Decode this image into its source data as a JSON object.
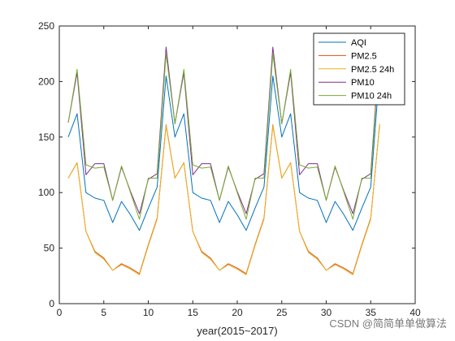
{
  "chart_data": {
    "type": "line",
    "title": "",
    "xlabel": "year(2015~2017)",
    "ylabel": "",
    "xlim": [
      0,
      40
    ],
    "ylim": [
      0,
      250
    ],
    "xticks": [
      0,
      5,
      10,
      15,
      20,
      25,
      30,
      35,
      40
    ],
    "yticks": [
      0,
      50,
      100,
      150,
      200,
      250
    ],
    "grid": false,
    "legend_position": "top-right",
    "x": [
      1,
      2,
      3,
      4,
      5,
      6,
      7,
      8,
      9,
      10,
      11,
      12,
      13,
      14,
      15,
      16,
      17,
      18,
      19,
      20,
      21,
      22,
      23,
      24,
      25,
      26,
      27,
      28,
      29,
      30,
      31,
      32,
      33,
      34,
      35,
      36
    ],
    "series": [
      {
        "name": "AQI",
        "color": "#0072BD",
        "values": [
          150,
          171,
          100,
          95,
          93,
          73,
          92,
          80,
          66,
          86,
          105,
          205,
          150,
          171,
          100,
          95,
          93,
          73,
          92,
          80,
          66,
          86,
          105,
          205,
          150,
          171,
          100,
          95,
          93,
          73,
          92,
          80,
          66,
          86,
          105,
          210
        ]
      },
      {
        "name": "PM2.5",
        "color": "#D95319",
        "values": [
          113,
          127,
          65,
          47,
          41,
          30,
          36,
          32,
          27,
          53,
          77,
          161,
          113,
          127,
          65,
          47,
          41,
          30,
          36,
          32,
          27,
          53,
          77,
          161,
          113,
          127,
          65,
          47,
          41,
          30,
          36,
          32,
          27,
          53,
          77,
          161
        ]
      },
      {
        "name": "PM2.5 24h",
        "color": "#EDB120",
        "values": [
          113,
          127,
          65,
          46,
          40,
          30,
          35,
          31,
          26,
          52,
          76,
          160,
          113,
          127,
          65,
          46,
          40,
          30,
          35,
          31,
          26,
          52,
          76,
          160,
          113,
          127,
          65,
          46,
          40,
          30,
          35,
          31,
          26,
          52,
          76,
          162
        ]
      },
      {
        "name": "PM10",
        "color": "#7E2F8E",
        "values": [
          163,
          208,
          116,
          126,
          126,
          93,
          123,
          101,
          81,
          112,
          117,
          231,
          162,
          208,
          116,
          126,
          126,
          93,
          123,
          101,
          81,
          112,
          117,
          231,
          162,
          208,
          116,
          126,
          126,
          93,
          123,
          101,
          81,
          112,
          117,
          231
        ]
      },
      {
        "name": "PM10 24h",
        "color": "#77AC30",
        "values": [
          163,
          211,
          125,
          122,
          123,
          93,
          124,
          100,
          76,
          113,
          113,
          225,
          162,
          211,
          125,
          122,
          123,
          93,
          124,
          100,
          76,
          113,
          113,
          225,
          162,
          211,
          125,
          122,
          123,
          93,
          124,
          100,
          76,
          113,
          113,
          227
        ]
      }
    ]
  },
  "watermark": "CSDN @简简单单做算法"
}
